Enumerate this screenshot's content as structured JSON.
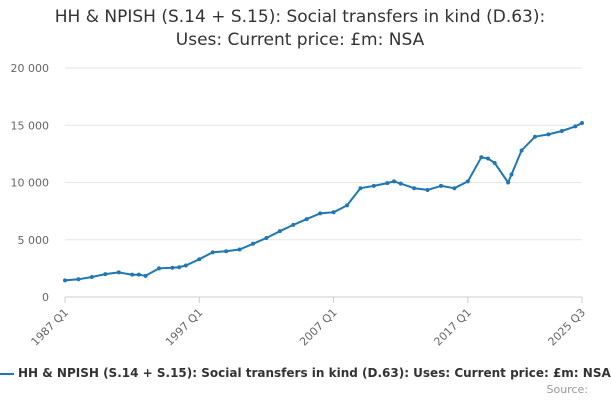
{
  "chart_data": {
    "type": "line",
    "title_line1": "HH & NPISH (S.14 + S.15): Social transfers in kind (D.63):",
    "title_line2": "Uses: Current price: £m: NSA",
    "y_ticks": [
      "0",
      "5 000",
      "10 000",
      "15 000",
      "20 000"
    ],
    "y_tick_values": [
      0,
      5000,
      10000,
      15000,
      20000
    ],
    "ylim": [
      0,
      20000
    ],
    "x_ticks": [
      "1987 Q1",
      "1997 Q1",
      "2007 Q1",
      "2017 Q1",
      "2025 Q3"
    ],
    "x_tick_values": [
      1987.0,
      1997.0,
      2007.0,
      2017.0,
      2025.5
    ],
    "xlim": [
      1987.0,
      2025.5
    ],
    "grid": true,
    "legend_position": "bottom",
    "color": "#1f77b4",
    "series": [
      {
        "name": "HH & NPISH (S.14 + S.15): Social transfers in kind (D.63): Uses: Current price: £m: NSA",
        "x": [
          1987.0,
          1988.0,
          1989.0,
          1990.0,
          1991.0,
          1992.0,
          1992.5,
          1993.0,
          1994.0,
          1995.0,
          1995.5,
          1996.0,
          1997.0,
          1998.0,
          1999.0,
          2000.0,
          2001.0,
          2002.0,
          2003.0,
          2004.0,
          2005.0,
          2006.0,
          2007.0,
          2008.0,
          2009.0,
          2010.0,
          2011.0,
          2011.5,
          2012.0,
          2013.0,
          2014.0,
          2015.0,
          2016.0,
          2017.0,
          2018.0,
          2018.5,
          2019.0,
          2020.0,
          2020.25,
          2021.0,
          2022.0,
          2023.0,
          2024.0,
          2025.0,
          2025.5
        ],
        "y": [
          1450,
          1550,
          1750,
          2000,
          2150,
          1950,
          1950,
          1850,
          2500,
          2550,
          2600,
          2750,
          3300,
          3900,
          4000,
          4150,
          4650,
          5150,
          5750,
          6300,
          6800,
          7300,
          7400,
          8000,
          9500,
          9700,
          9950,
          10100,
          9900,
          9500,
          9350,
          9700,
          9500,
          10100,
          12200,
          12100,
          11700,
          10000,
          10700,
          12800,
          14000,
          14200,
          14500,
          14900,
          15200
        ]
      }
    ]
  },
  "footer": {
    "source_label": "Source:"
  }
}
